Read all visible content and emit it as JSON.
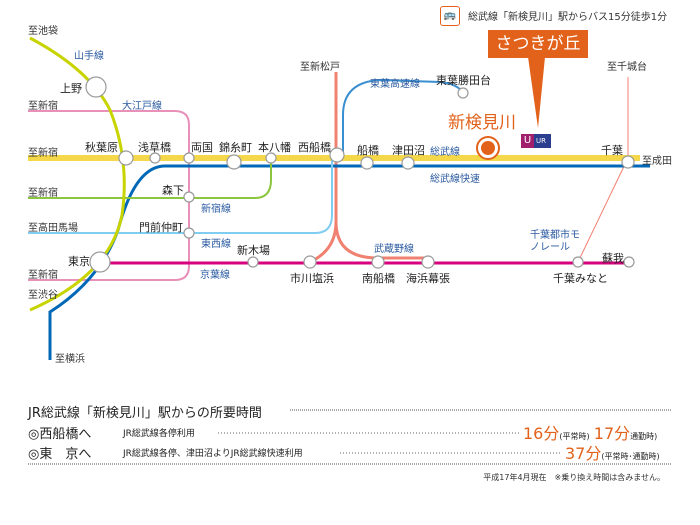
{
  "bus_note": "総武線「新検見川」駅からバス15分徒歩1分",
  "bus_icon": "bus-icon",
  "callout": "さつきが丘",
  "hero_station": "新検見川",
  "ur_logo": "UR",
  "directions": {
    "ikebukuro": "至池袋",
    "shinjuku1": "至新宿",
    "shinjuku2": "至新宿",
    "shinjuku3": "至新宿",
    "shinjuku4": "至新宿",
    "takadanobaba": "至高田馬場",
    "shibuya": "至渋谷",
    "yokohama": "至横浜",
    "shinmatsudo": "至新松戸",
    "chishirodai": "至千城台",
    "narita": "至成田"
  },
  "lines": {
    "yamanote": "山手線",
    "oedo": "大江戸線",
    "toyo": "東葉高速線",
    "sobu": "総武線",
    "sobu_rapid": "総武線快速",
    "shinjuku": "新宿線",
    "tozai": "東西線",
    "keiyo": "京葉線",
    "musashino": "武蔵野線",
    "monorail": "千葉都市モノレール"
  },
  "stations": {
    "ueno": "上野",
    "akihabara": "秋葉原",
    "asakusabashi": "浅草橋",
    "ryogoku": "両国",
    "kinshicho": "錦糸町",
    "motoyawata": "本八幡",
    "nishifunabashi": "西船橋",
    "funabashi": "船橋",
    "tsudanuma": "津田沼",
    "chiba": "千葉",
    "toyokatsutadai": "東葉勝田台",
    "morishita": "森下",
    "monzennakacho": "門前仲町",
    "tokyo": "東京",
    "shinkiba": "新木場",
    "ichikawashiohama": "市川塩浜",
    "minamifunabashi": "南船橋",
    "kaihinmakuhari": "海浜幕張",
    "chibaminato": "千葉みなと",
    "soga": "蘇我"
  },
  "colors": {
    "yamanote": "#c8d400",
    "oedo": "#e890b8",
    "sobu": "#f5d84a",
    "sobu_rapid": "#0068b7",
    "shinjuku": "#8cc63f",
    "tozai": "#7fcdf0",
    "keiyo": "#d8007f",
    "musashino": "#f08070",
    "toyo": "#3a8fd0",
    "accent": "#e2621b"
  },
  "travel": {
    "title": "JR総武線「新検見川」駅からの所要時間",
    "rows": [
      {
        "dest": "◎西船橋へ",
        "via": "JR総武線各停利用",
        "time1": "16分",
        "note1": "(平常時)",
        "time2": "17分",
        "note2": "通勤時)"
      },
      {
        "dest": "◎東　京へ",
        "via": "JR総武線各停、津田沼よりJR総武線快速利用",
        "time1": "37分",
        "note1": "(平常時･通勤時)"
      }
    ],
    "footnote": "平成17年4月現在　※乗り換え時間は含みません。"
  }
}
